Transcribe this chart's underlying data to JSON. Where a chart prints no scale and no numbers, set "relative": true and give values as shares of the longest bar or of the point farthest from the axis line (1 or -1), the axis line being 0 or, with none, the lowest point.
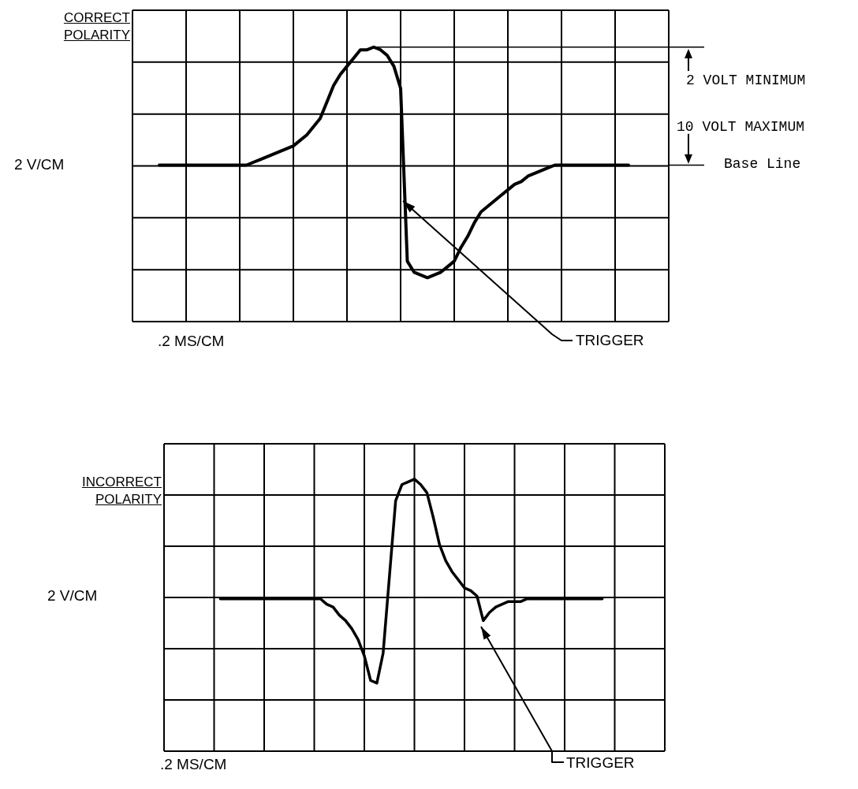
{
  "chart_data": [
    {
      "type": "line",
      "title": "CORRECT POLARITY",
      "xlabel": ".2 MS/CM",
      "ylabel": "2 V/CM",
      "relative": true,
      "grid": true,
      "categories": [
        null,
        null,
        null,
        null,
        null,
        null,
        null,
        null,
        null,
        null,
        null,
        null,
        null,
        null,
        null,
        null,
        null,
        null,
        null,
        null,
        null,
        null,
        null,
        null,
        null,
        null,
        null,
        null,
        null,
        null,
        null,
        null,
        null,
        null,
        null,
        null,
        null,
        null,
        null,
        null,
        null,
        null,
        null,
        null,
        null,
        null,
        null,
        null,
        null,
        null,
        null,
        null,
        null,
        null,
        null,
        null,
        null,
        null,
        null,
        null,
        null,
        null,
        null,
        null,
        null,
        null,
        null,
        null,
        null,
        null,
        null,
        null,
        null,
        null,
        null,
        null,
        null,
        null,
        null,
        null,
        null
      ],
      "series": [
        {
          "color": "#000000",
          "values": [
            null,
            null,
            null,
            null,
            0.57,
            0.57,
            0.57,
            0.57,
            0.57,
            0.57,
            0.57,
            0.57,
            0.57,
            0.57,
            0.57,
            0.57,
            0.57,
            0.57,
            0.58,
            0.59,
            0.6,
            0.61,
            0.62,
            0.63,
            0.64,
            0.66,
            0.68,
            0.71,
            0.74,
            0.8,
            0.86,
            0.9,
            0.93,
            0.96,
            0.99,
            0.99,
            1,
            0.99,
            0.97,
            0.93,
            0.85,
            0.22,
            0.18,
            0.17,
            0.16,
            0.17,
            0.18,
            0.2,
            0.22,
            0.27,
            0.31,
            0.36,
            0.4,
            0.42,
            0.44,
            0.46,
            0.48,
            0.5,
            0.51,
            0.53,
            0.54,
            0.55,
            0.56,
            0.57,
            0.57,
            0.57,
            0.57,
            0.57,
            0.57,
            0.57,
            0.57,
            0.57,
            0.57,
            0.57,
            0.57,
            null,
            null,
            null,
            null,
            null,
            null
          ]
        }
      ],
      "ref_lines": [
        {
          "axis": "y",
          "value": 1,
          "label": null
        },
        {
          "axis": "y",
          "value": 0.57,
          "label": "Base Line"
        }
      ],
      "annotations": [
        "2 VOLT MINIMUM",
        "10 VOLT MAXIMUM",
        "TRIGGER"
      ]
    },
    {
      "type": "line",
      "title": "INCORRECT POLARITY",
      "xlabel": ".2 MS/CM",
      "ylabel": "2 V/CM",
      "relative": true,
      "grid": true,
      "categories": [
        null,
        null,
        null,
        null,
        null,
        null,
        null,
        null,
        null,
        null,
        null,
        null,
        null,
        null,
        null,
        null,
        null,
        null,
        null,
        null,
        null,
        null,
        null,
        null,
        null,
        null,
        null,
        null,
        null,
        null,
        null,
        null,
        null,
        null,
        null,
        null,
        null,
        null,
        null,
        null,
        null,
        null,
        null,
        null,
        null,
        null,
        null,
        null,
        null,
        null,
        null,
        null,
        null,
        null,
        null,
        null,
        null,
        null,
        null,
        null,
        null,
        null,
        null,
        null,
        null,
        null,
        null,
        null,
        null,
        null,
        null,
        null,
        null,
        null,
        null,
        null,
        null,
        null,
        null,
        null,
        null
      ],
      "series": [
        {
          "color": "#000000",
          "values": [
            null,
            null,
            null,
            null,
            null,
            null,
            null,
            null,
            null,
            0.56,
            0.56,
            0.56,
            0.56,
            0.56,
            0.56,
            0.56,
            0.56,
            0.56,
            0.56,
            0.56,
            0.56,
            0.56,
            0.56,
            0.56,
            0.56,
            0.56,
            0.54,
            0.53,
            0.5,
            0.48,
            0.45,
            0.41,
            0.35,
            0.26,
            0.25,
            0.36,
            0.64,
            0.92,
            0.98,
            0.99,
            1,
            0.98,
            0.95,
            0.86,
            0.76,
            0.7,
            0.66,
            0.63,
            0.6,
            0.59,
            0.57,
            0.48,
            0.51,
            0.53,
            0.54,
            0.55,
            0.55,
            0.55,
            0.56,
            0.56,
            0.56,
            0.56,
            0.56,
            0.56,
            0.56,
            0.56,
            0.56,
            0.56,
            0.56,
            0.56,
            0.56,
            null,
            null,
            null,
            null,
            null,
            null,
            null,
            null,
            null,
            null
          ]
        }
      ],
      "annotations": [
        "TRIGGER"
      ]
    }
  ]
}
